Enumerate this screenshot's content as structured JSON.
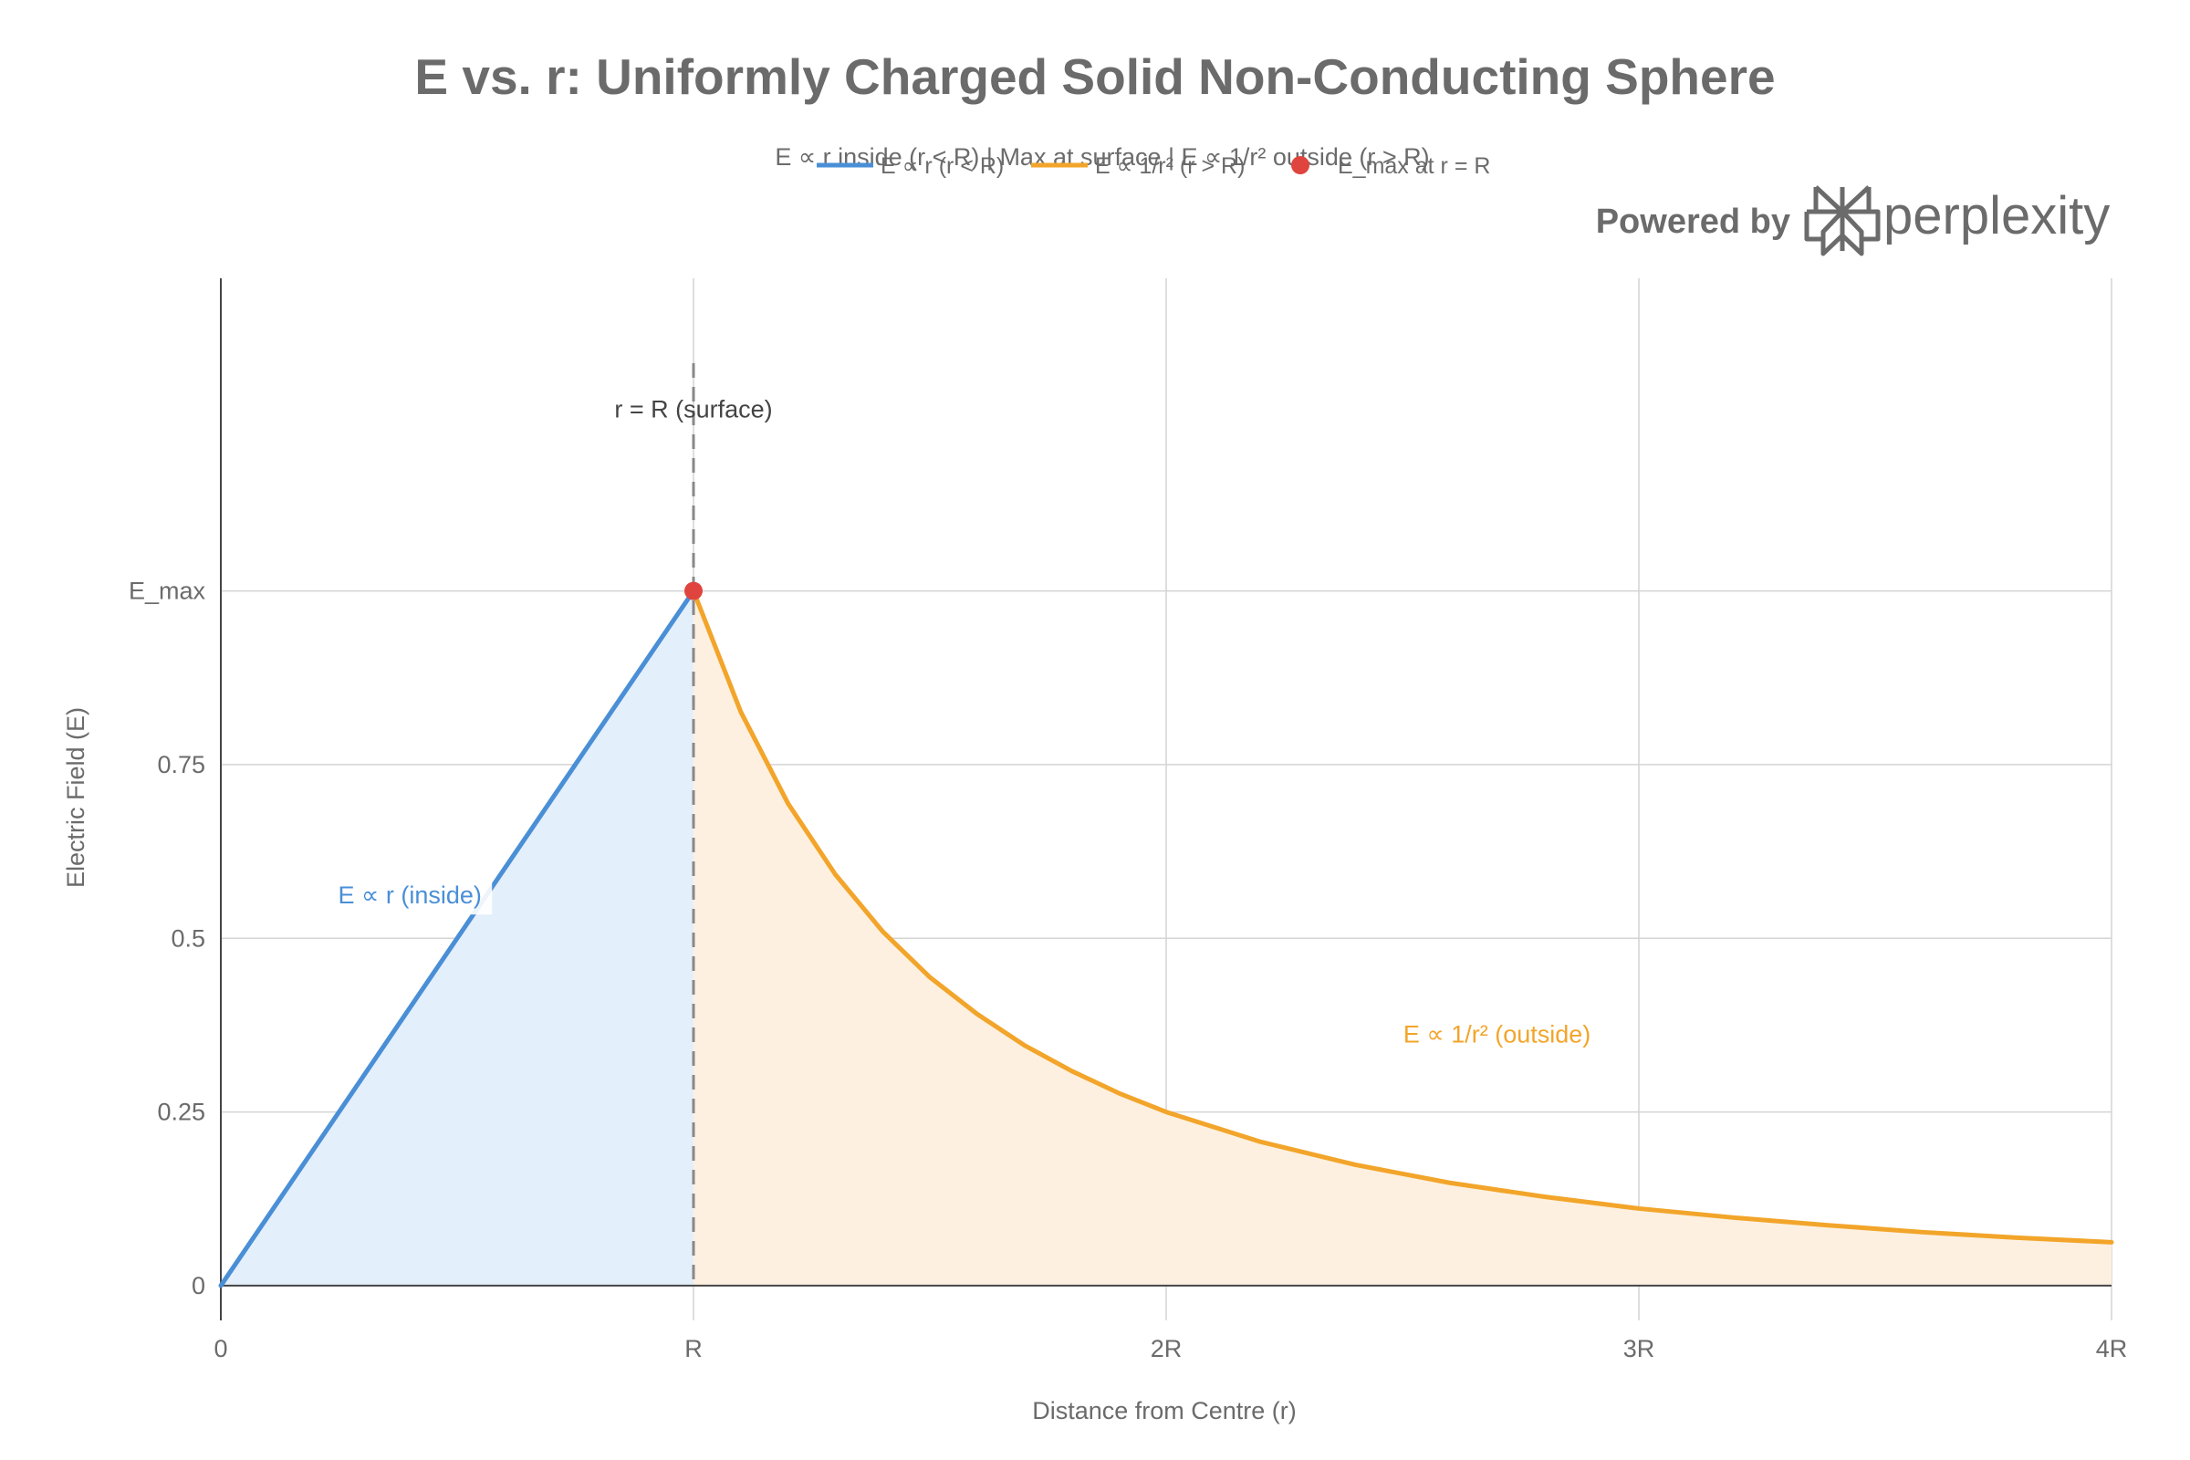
{
  "chart_data": {
    "type": "line",
    "title": "E vs. r: Uniformly Charged Solid Non-Conducting Sphere",
    "subtitle": "E ∝ r inside (r < R) | Max at surface | E ∝ 1/r² outside (r > R)",
    "xlabel": "Distance from Centre (r)",
    "ylabel": "Electric Field (E)",
    "xlim": [
      0,
      4
    ],
    "ylim": [
      -0.05,
      1.45
    ],
    "x_ticks": [
      {
        "value": 0,
        "label": "0"
      },
      {
        "value": 1,
        "label": "R"
      },
      {
        "value": 2,
        "label": "2R"
      },
      {
        "value": 3,
        "label": "3R"
      },
      {
        "value": 4,
        "label": "4R"
      }
    ],
    "y_ticks": [
      {
        "value": 0,
        "label": "0"
      },
      {
        "value": 0.25,
        "label": "0.25"
      },
      {
        "value": 0.5,
        "label": "0.5"
      },
      {
        "value": 0.75,
        "label": "0.75"
      },
      {
        "value": 1,
        "label": "E_max"
      }
    ],
    "grid": true,
    "legend_position": "top-center",
    "series": [
      {
        "name": "E ∝ r  (r < R)",
        "type": "line",
        "fill": "tozero",
        "color": "#4a8fd6",
        "fill_color": "#e4effc",
        "x": [
          0,
          0.25,
          0.5,
          0.75,
          1
        ],
        "y": [
          0,
          0.25,
          0.5,
          0.75,
          1
        ]
      },
      {
        "name": "E ∝ 1/r²  (r > R)",
        "type": "line",
        "fill": "tozero",
        "color": "#f2a52a",
        "fill_color": "#fdf0e0",
        "x": [
          1,
          1.1,
          1.2,
          1.3,
          1.4,
          1.5,
          1.6,
          1.7,
          1.8,
          1.9,
          2,
          2.2,
          2.4,
          2.6,
          2.8,
          3,
          3.2,
          3.4,
          3.6,
          3.8,
          4
        ],
        "y": [
          1,
          0.826,
          0.694,
          0.592,
          0.51,
          0.444,
          0.391,
          0.346,
          0.309,
          0.277,
          0.25,
          0.207,
          0.174,
          0.148,
          0.128,
          0.111,
          0.098,
          0.087,
          0.077,
          0.069,
          0.0625
        ]
      },
      {
        "name": "E_max at r = R",
        "type": "marker",
        "color": "#e0443e",
        "x": [
          1
        ],
        "y": [
          1
        ]
      }
    ],
    "annotations": [
      {
        "text": "r = R (surface)",
        "x": 1,
        "y": 1.25,
        "color": "#444444"
      },
      {
        "text": "E ∝ r (inside)",
        "x": 0.4,
        "y": 0.55,
        "color": "#4a8fd6"
      },
      {
        "text": "E ∝ 1/r² (outside)",
        "x": 2.7,
        "y": 0.35,
        "color": "#f2a52a"
      }
    ],
    "vertical_line": {
      "x": 1,
      "style": "dashed",
      "color": "#888888"
    }
  },
  "branding": {
    "powered_by": "Powered by",
    "name": "perplexity"
  }
}
